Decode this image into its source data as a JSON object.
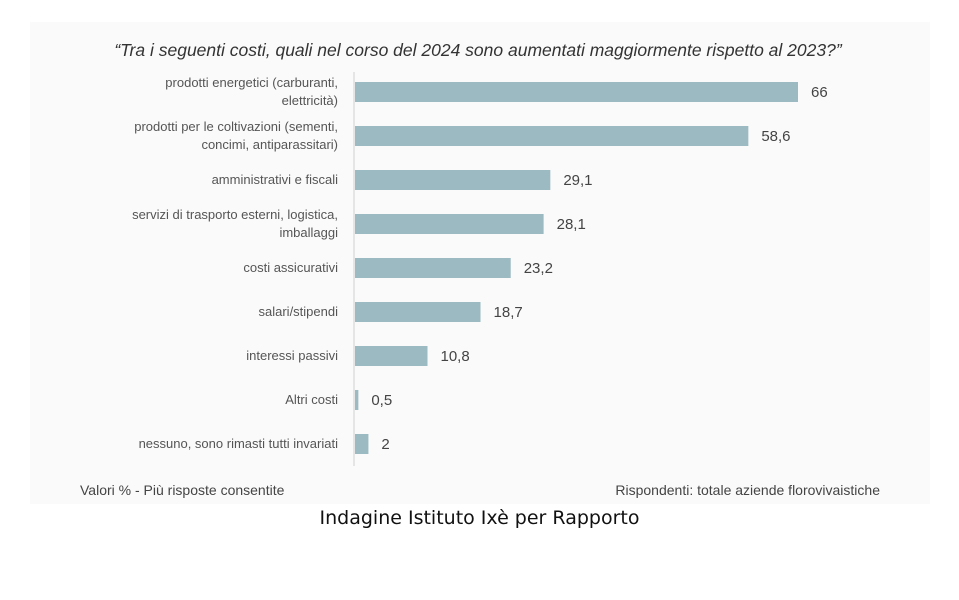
{
  "chart_data": {
    "type": "bar",
    "orientation": "horizontal",
    "title": "“Tra i seguenti costi, quali nel corso del 2024 sono aumentati maggiormente rispetto al 2023?”",
    "categories": [
      [
        "prodotti energetici (carburanti,",
        "elettricità)"
      ],
      [
        "prodotti per le coltivazioni (sementi,",
        "concimi, antiparassitari)"
      ],
      [
        "amministrativi e fiscali"
      ],
      [
        "servizi di trasporto esterni, logistica,",
        "imballaggi"
      ],
      [
        "costi assicurativi"
      ],
      [
        "salari/stipendi"
      ],
      [
        "interessi passivi"
      ],
      [
        "Altri costi"
      ],
      [
        "nessuno, sono rimasti tutti invariati"
      ]
    ],
    "values": [
      66,
      58.6,
      29.1,
      28.1,
      23.2,
      18.7,
      10.8,
      0.5,
      2
    ],
    "value_labels": [
      "66",
      "58,6",
      "29,1",
      "28,1",
      "23,2",
      "18,7",
      "10,8",
      "0,5",
      "2"
    ],
    "bar_color": "#9bbac1",
    "grid": false,
    "footnote_left": "Valori % - Più risposte consentite",
    "footnote_right": "Rispondenti: totale aziende florovivaistiche"
  },
  "caption": "Indagine Istituto Ixè per Rapporto"
}
